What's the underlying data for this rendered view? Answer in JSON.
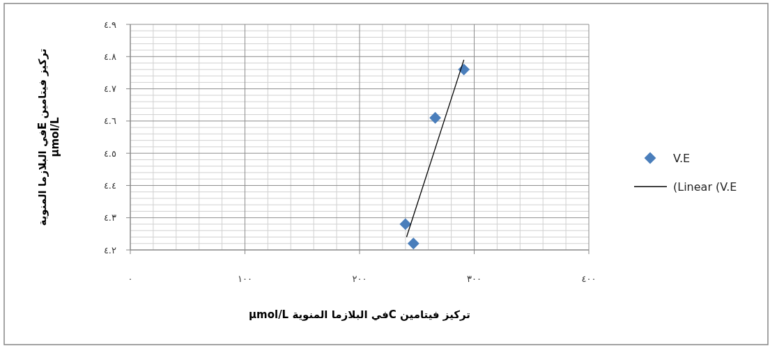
{
  "chart_data": {
    "type": "scatter",
    "xlabel": "تركيز فيتامين Cفي البلازما المنوية µmol/L",
    "ylabel": "تركيز فيتامين Eفي البلازما المنوية\nµmol/L",
    "xlim": [
      0,
      400
    ],
    "xticks": [
      {
        "value": 0,
        "label": "٠"
      },
      {
        "value": 100,
        "label": "١٠٠"
      },
      {
        "value": 200,
        "label": "٢٠٠"
      },
      {
        "value": 300,
        "label": "٣٠٠"
      },
      {
        "value": 400,
        "label": "٤٠٠"
      }
    ],
    "ylim": [
      4.2,
      4.9
    ],
    "yticks": [
      {
        "value": 4.2,
        "label": "٤.٢"
      },
      {
        "value": 4.3,
        "label": "٤.٣"
      },
      {
        "value": 4.4,
        "label": "٤.٤"
      },
      {
        "value": 4.5,
        "label": "٤.٥"
      },
      {
        "value": 4.6,
        "label": "٤.٦"
      },
      {
        "value": 4.7,
        "label": "٤.٧"
      },
      {
        "value": 4.8,
        "label": "٤.٨"
      },
      {
        "value": 4.9,
        "label": "٤.٩"
      }
    ],
    "grid": true,
    "legend": "right",
    "series": [
      {
        "name": "V.E",
        "marker": "diamond",
        "color": "#4a7ebb",
        "x": [
          240,
          247,
          266,
          291
        ],
        "values": [
          4.28,
          4.22,
          4.61,
          4.76
        ]
      },
      {
        "name": "(Linear (V.E",
        "type": "line",
        "color": "#000000",
        "line_style": "solid",
        "marker": "none",
        "x": [
          241,
          291
        ],
        "values": [
          4.24,
          4.79
        ]
      }
    ]
  }
}
